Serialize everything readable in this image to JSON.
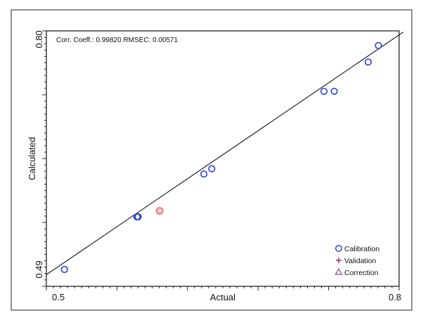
{
  "chart_data": {
    "type": "scatter",
    "title": "",
    "xlabel": "Actual",
    "ylabel": "Calculated",
    "xlim": [
      0.5,
      0.8
    ],
    "ylim": [
      0.49,
      0.8
    ],
    "x_ticks": [
      {
        "value": 0.5,
        "label": "0.5"
      },
      {
        "value": 0.8,
        "label": "0.8"
      }
    ],
    "y_ticks": [
      {
        "value": 0.49,
        "label": "0.49"
      },
      {
        "value": 0.8,
        "label": "0.80"
      }
    ],
    "annotation": "Corr. Coeff.: 0.99820   RMSEC: 0.00571",
    "fit_line": {
      "x": [
        0.49,
        0.805
      ],
      "y": [
        0.483,
        0.806
      ]
    },
    "legend_position": "bottom-right",
    "series": [
      {
        "name": "Calibration",
        "marker": "circle",
        "color": "#2b3fd6",
        "points": [
          {
            "x": 0.506,
            "y": 0.49
          },
          {
            "x": 0.57,
            "y": 0.56
          },
          {
            "x": 0.571,
            "y": 0.56
          },
          {
            "x": 0.629,
            "y": 0.617
          },
          {
            "x": 0.636,
            "y": 0.624
          },
          {
            "x": 0.735,
            "y": 0.727
          },
          {
            "x": 0.744,
            "y": 0.727
          },
          {
            "x": 0.774,
            "y": 0.766
          },
          {
            "x": 0.783,
            "y": 0.788
          }
        ]
      },
      {
        "name": "Validation",
        "marker": "plus",
        "color": "#a0337a",
        "points": []
      },
      {
        "name": "Correction",
        "marker": "triangle",
        "color": "#a05aa8",
        "points": []
      }
    ],
    "highlight_points": [
      {
        "x": 0.59,
        "y": 0.568,
        "color": "#e86a6a"
      }
    ]
  }
}
